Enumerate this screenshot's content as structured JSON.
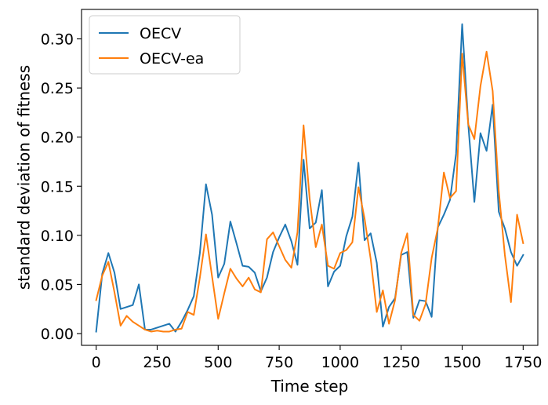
{
  "chart_data": {
    "type": "line",
    "xlabel": "Time step",
    "ylabel": "standard deviation of fitness",
    "xlim": [
      -60,
      1810
    ],
    "ylim": [
      -0.012,
      0.33
    ],
    "xticks": [
      0,
      250,
      500,
      750,
      1000,
      1250,
      1500,
      1750
    ],
    "yticks": [
      0.0,
      0.05,
      0.1,
      0.15,
      0.2,
      0.25,
      0.3
    ],
    "xtick_labels": [
      "0",
      "250",
      "500",
      "750",
      "1000",
      "1250",
      "1500",
      "1750"
    ],
    "ytick_labels": [
      "0.00",
      "0.05",
      "0.10",
      "0.15",
      "0.20",
      "0.25",
      "0.30"
    ],
    "grid": false,
    "legend_position": "upper-left",
    "series": [
      {
        "name": "OECV",
        "color": "#1f77b4",
        "x": [
          0,
          25,
          50,
          75,
          100,
          125,
          150,
          175,
          200,
          225,
          250,
          275,
          300,
          325,
          350,
          375,
          400,
          425,
          450,
          475,
          500,
          525,
          550,
          575,
          600,
          625,
          650,
          675,
          700,
          725,
          750,
          775,
          800,
          825,
          850,
          875,
          900,
          925,
          950,
          975,
          1000,
          1025,
          1050,
          1075,
          1100,
          1125,
          1150,
          1175,
          1200,
          1225,
          1250,
          1275,
          1300,
          1325,
          1350,
          1375,
          1400,
          1425,
          1450,
          1475,
          1500,
          1525,
          1550,
          1575,
          1600,
          1625,
          1650,
          1675,
          1700,
          1725,
          1750
        ],
        "y": [
          0.002,
          0.061,
          0.082,
          0.062,
          0.025,
          0.027,
          0.029,
          0.05,
          0.004,
          0.004,
          0.006,
          0.008,
          0.01,
          0.002,
          0.012,
          0.024,
          0.038,
          0.082,
          0.152,
          0.121,
          0.057,
          0.071,
          0.114,
          0.092,
          0.069,
          0.068,
          0.062,
          0.043,
          0.057,
          0.083,
          0.098,
          0.111,
          0.094,
          0.07,
          0.177,
          0.107,
          0.113,
          0.146,
          0.048,
          0.063,
          0.069,
          0.099,
          0.119,
          0.174,
          0.095,
          0.102,
          0.072,
          0.007,
          0.027,
          0.036,
          0.08,
          0.083,
          0.016,
          0.034,
          0.033,
          0.017,
          0.108,
          0.121,
          0.136,
          0.183,
          0.315,
          0.213,
          0.134,
          0.204,
          0.186,
          0.233,
          0.124,
          0.107,
          0.083,
          0.069,
          0.08
        ]
      },
      {
        "name": "OECV-ea",
        "color": "#ff7f0e",
        "x": [
          0,
          25,
          50,
          75,
          100,
          125,
          150,
          175,
          200,
          225,
          250,
          275,
          300,
          325,
          350,
          375,
          400,
          425,
          450,
          475,
          500,
          525,
          550,
          575,
          600,
          625,
          650,
          675,
          700,
          725,
          750,
          775,
          800,
          825,
          850,
          875,
          900,
          925,
          950,
          975,
          1000,
          1025,
          1050,
          1075,
          1100,
          1125,
          1150,
          1175,
          1200,
          1225,
          1250,
          1275,
          1300,
          1325,
          1350,
          1375,
          1400,
          1425,
          1450,
          1475,
          1500,
          1525,
          1550,
          1575,
          1600,
          1625,
          1650,
          1675,
          1700,
          1725,
          1750
        ],
        "y": [
          0.034,
          0.059,
          0.073,
          0.042,
          0.008,
          0.018,
          0.012,
          0.008,
          0.004,
          0.002,
          0.003,
          0.002,
          0.002,
          0.004,
          0.005,
          0.022,
          0.019,
          0.057,
          0.101,
          0.058,
          0.015,
          0.041,
          0.066,
          0.056,
          0.048,
          0.057,
          0.045,
          0.042,
          0.096,
          0.103,
          0.089,
          0.075,
          0.067,
          0.103,
          0.212,
          0.137,
          0.088,
          0.111,
          0.069,
          0.066,
          0.082,
          0.085,
          0.093,
          0.149,
          0.117,
          0.076,
          0.022,
          0.044,
          0.01,
          0.034,
          0.082,
          0.102,
          0.019,
          0.013,
          0.03,
          0.077,
          0.107,
          0.164,
          0.138,
          0.145,
          0.285,
          0.213,
          0.198,
          0.252,
          0.287,
          0.247,
          0.145,
          0.08,
          0.032,
          0.121,
          0.092
        ]
      }
    ]
  }
}
